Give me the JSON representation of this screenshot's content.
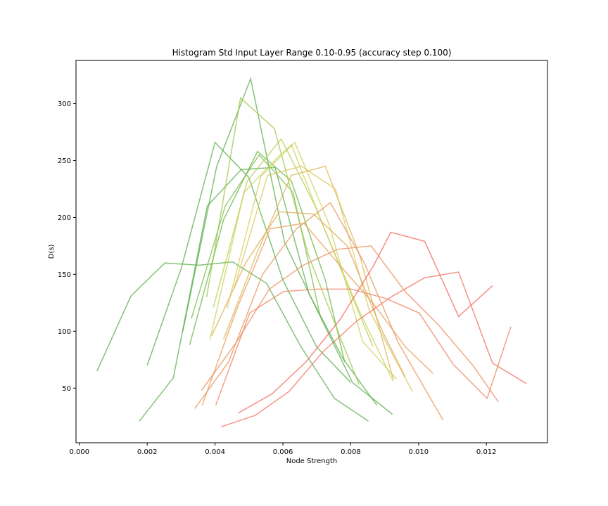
{
  "chart_data": {
    "type": "line",
    "title": "Histogram Std Input Layer Range 0.10-0.95 (accuracy step 0.100)",
    "xlabel": "Node Strength",
    "ylabel": "D(s)",
    "xlim": [
      -0.0001,
      0.0138
    ],
    "ylim": [
      2,
      338
    ],
    "xticks": [
      0.0,
      0.002,
      0.004,
      0.006,
      0.008,
      0.01,
      0.012
    ],
    "xtick_labels": [
      "0.000",
      "0.002",
      "0.004",
      "0.006",
      "0.008",
      "0.010",
      "0.012"
    ],
    "yticks": [
      50,
      100,
      150,
      200,
      250,
      300
    ],
    "ytick_labels": [
      "50",
      "100",
      "150",
      "200",
      "250",
      "300"
    ],
    "grid": false,
    "legend": false,
    "series": [
      {
        "color": "#5aaf4a",
        "x": [
          0.00052,
          0.00152,
          0.00252,
          0.00352,
          0.00452,
          0.00552,
          0.00652,
          0.00752,
          0.00852
        ],
        "y": [
          65,
          131,
          160,
          158,
          161,
          142,
          87,
          41,
          21
        ]
      },
      {
        "color": "#5aaf4a",
        "x": [
          0.002,
          0.003,
          0.004,
          0.005,
          0.006,
          0.007,
          0.008
        ],
        "y": [
          70,
          155,
          266,
          235,
          145,
          86,
          55
        ]
      },
      {
        "color": "#5aaf4a",
        "x": [
          0.00177,
          0.00277,
          0.00377,
          0.00477,
          0.00577,
          0.00677,
          0.00777,
          0.00877
        ],
        "y": [
          21,
          59,
          210,
          242,
          244,
          133,
          76,
          35
        ]
      },
      {
        "color": "#5aaf4a",
        "x": [
          0.00305,
          0.00405,
          0.00505,
          0.00605,
          0.00705,
          0.00805,
          0.00923
        ],
        "y": [
          100,
          245,
          322,
          178,
          116,
          55,
          27
        ]
      },
      {
        "color": "#6bb547",
        "x": [
          0.00325,
          0.00425,
          0.00525,
          0.00625,
          0.00725,
          0.00782
        ],
        "y": [
          88,
          198,
          258,
          232,
          145,
          73
        ]
      },
      {
        "color": "#7cbc45",
        "x": [
          0.0033,
          0.0043,
          0.0053,
          0.0063,
          0.0071
        ],
        "y": [
          111,
          210,
          255,
          222,
          113
        ]
      },
      {
        "color": "#9cc74a",
        "x": [
          0.00375,
          0.00475,
          0.00575,
          0.00675,
          0.00775,
          0.00825
        ],
        "y": [
          130,
          305,
          278,
          167,
          90,
          53
        ]
      },
      {
        "color": "#b5cf4f",
        "x": [
          0.00395,
          0.00495,
          0.00595,
          0.00695,
          0.00795,
          0.00865
        ],
        "y": [
          121,
          232,
          269,
          210,
          137,
          87
        ]
      },
      {
        "color": "#c8d35a",
        "x": [
          0.00385,
          0.00485,
          0.00585,
          0.00625,
          0.00725,
          0.00825,
          0.00925
        ],
        "y": [
          93,
          222,
          253,
          264,
          188,
          118,
          56
        ]
      },
      {
        "color": "#d4cf5c",
        "x": [
          0.00435,
          0.00535,
          0.00635,
          0.00735,
          0.00835,
          0.00935
        ],
        "y": [
          120,
          236,
          266,
          195,
          91,
          58
        ]
      },
      {
        "color": "#dac75d",
        "x": [
          0.00455,
          0.00555,
          0.00655,
          0.00755,
          0.00855,
          0.00982
        ],
        "y": [
          137,
          237,
          245,
          225,
          118,
          47
        ]
      },
      {
        "color": "#dbb753",
        "x": [
          0.00425,
          0.00525,
          0.00625,
          0.00725,
          0.00825,
          0.00925
        ],
        "y": [
          93,
          170,
          237,
          245,
          168,
          58
        ]
      },
      {
        "color": "#e0a852",
        "x": [
          0.0039,
          0.0049,
          0.0059,
          0.0069,
          0.0079,
          0.0089,
          0.0096
        ],
        "y": [
          96,
          160,
          205,
          203,
          175,
          102,
          60
        ]
      },
      {
        "color": "#e79b55",
        "x": [
          0.00362,
          0.00462,
          0.00562,
          0.00662,
          0.00762,
          0.00862,
          0.00962,
          0.01042
        ],
        "y": [
          35,
          118,
          190,
          195,
          160,
          126,
          86,
          63
        ]
      },
      {
        "color": "#ea9458",
        "x": [
          0.0034,
          0.0044,
          0.0054,
          0.0064,
          0.0074,
          0.0084,
          0.0094,
          0.01072
        ],
        "y": [
          32,
          73,
          150,
          190,
          213,
          160,
          90,
          22
        ]
      },
      {
        "color": "#ec8c5d",
        "x": [
          0.0036,
          0.0046,
          0.0056,
          0.0066,
          0.0076,
          0.0086,
          0.0096,
          0.0106,
          0.0116,
          0.01235
        ],
        "y": [
          48,
          89,
          137,
          158,
          172,
          175,
          135,
          105,
          70,
          38
        ]
      },
      {
        "color": "#ef8060",
        "x": [
          0.00402,
          0.00502,
          0.00602,
          0.00702,
          0.00802,
          0.00902,
          0.01002,
          0.01102,
          0.01202,
          0.01272
        ],
        "y": [
          35,
          116,
          135,
          137,
          137,
          129,
          116,
          71,
          41,
          104
        ]
      },
      {
        "color": "#f2725e",
        "x": [
          0.00418,
          0.00518,
          0.00618,
          0.00718,
          0.00818,
          0.00918,
          0.01018,
          0.01118,
          0.01218,
          0.01318
        ],
        "y": [
          16,
          26,
          47,
          82,
          109,
          130,
          147,
          152,
          72,
          54
        ]
      },
      {
        "color": "#f4665c",
        "x": [
          0.00468,
          0.00568,
          0.00668,
          0.00768,
          0.00868,
          0.00918,
          0.01018,
          0.01118,
          0.01218
        ],
        "y": [
          28,
          45,
          73,
          110,
          158,
          187,
          179,
          113,
          140
        ]
      }
    ]
  }
}
